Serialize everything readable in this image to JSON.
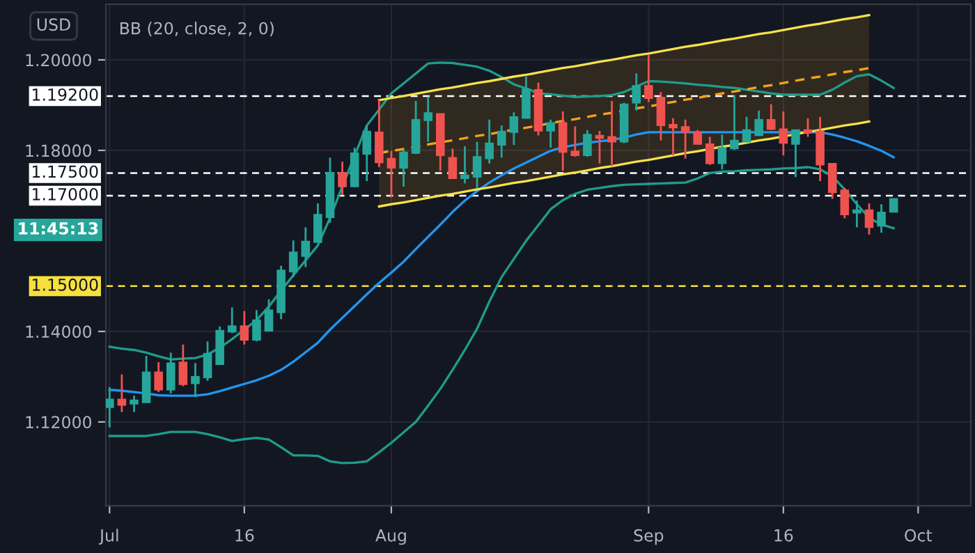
{
  "chart_data": {
    "type": "candlestick",
    "title": "BB (20, close, 2, 0)",
    "annotations": [
      "USD",
      "11:45:13"
    ],
    "categories": [
      "Jul",
      null,
      null,
      null,
      null,
      null,
      null,
      null,
      null,
      null,
      null,
      "16",
      null,
      null,
      null,
      null,
      null,
      null,
      null,
      null,
      null,
      null,
      null,
      "Aug",
      null,
      null,
      null,
      null,
      null,
      null,
      null,
      null,
      null,
      null,
      null,
      null,
      null,
      null,
      null,
      null,
      null,
      null,
      null,
      null,
      "Sep",
      null,
      null,
      null,
      null,
      null,
      null,
      null,
      null,
      null,
      null,
      "16",
      null,
      null,
      null,
      null,
      null,
      null,
      null,
      null,
      null,
      null,
      "Oct",
      null,
      null,
      null,
      null
    ],
    "ohlc": [
      [
        1.1232,
        1.1277,
        1.1188,
        1.125
      ],
      [
        1.125,
        1.1305,
        1.1222,
        1.1237
      ],
      [
        1.124,
        1.1258,
        1.1222,
        1.1248
      ],
      [
        1.1243,
        1.1346,
        1.1243,
        1.131
      ],
      [
        1.131,
        1.1332,
        1.1266,
        1.1271
      ],
      [
        1.1271,
        1.1353,
        1.1263,
        1.133
      ],
      [
        1.1332,
        1.1371,
        1.1279,
        1.1283
      ],
      [
        1.1285,
        1.133,
        1.1255,
        1.13
      ],
      [
        1.1298,
        1.1378,
        1.1291,
        1.1351
      ],
      [
        1.1327,
        1.1411,
        1.1327,
        1.1402
      ],
      [
        1.1399,
        1.1453,
        1.1396,
        1.1412
      ],
      [
        1.1412,
        1.1445,
        1.1371,
        1.1381
      ],
      [
        1.1381,
        1.1447,
        1.1378,
        1.1425
      ],
      [
        1.1401,
        1.1471,
        1.1401,
        1.1447
      ],
      [
        1.1442,
        1.1545,
        1.1427,
        1.1535
      ],
      [
        1.1532,
        1.1601,
        1.152,
        1.1575
      ],
      [
        1.1566,
        1.163,
        1.1542,
        1.1599
      ],
      [
        1.1597,
        1.1683,
        1.1597,
        1.1658
      ],
      [
        1.1652,
        1.1784,
        1.164,
        1.1751
      ],
      [
        1.1751,
        1.1775,
        1.1702,
        1.172
      ],
      [
        1.172,
        1.1806,
        1.172,
        1.1794
      ],
      [
        1.1792,
        1.1855,
        1.1732,
        1.1842
      ],
      [
        1.184,
        1.1912,
        1.1763,
        1.1773
      ],
      [
        1.1782,
        1.1799,
        1.1696,
        1.1761
      ],
      [
        1.1761,
        1.1802,
        1.172,
        1.1796
      ],
      [
        1.1794,
        1.1909,
        1.1792,
        1.1868
      ],
      [
        1.1866,
        1.1919,
        1.1819,
        1.1883
      ],
      [
        1.1881,
        1.1881,
        1.1755,
        1.1789
      ],
      [
        1.1784,
        1.1804,
        1.1738,
        1.1738
      ],
      [
        1.1738,
        1.1809,
        1.1727,
        1.1745
      ],
      [
        1.1741,
        1.1819,
        1.1717,
        1.1786
      ],
      [
        1.1782,
        1.1868,
        1.1771,
        1.1816
      ],
      [
        1.1812,
        1.1855,
        1.1784,
        1.1842
      ],
      [
        1.184,
        1.1884,
        1.1812,
        1.1874
      ],
      [
        1.1871,
        1.1963,
        1.1871,
        1.1935
      ],
      [
        1.1934,
        1.195,
        1.1833,
        1.1843
      ],
      [
        1.1843,
        1.1868,
        1.1806,
        1.1861
      ],
      [
        1.1861,
        1.1886,
        1.1755,
        1.1796
      ],
      [
        1.1798,
        1.1853,
        1.1786,
        1.1789
      ],
      [
        1.1789,
        1.1845,
        1.1786,
        1.1835
      ],
      [
        1.1833,
        1.1843,
        1.1771,
        1.1827
      ],
      [
        1.183,
        1.1909,
        1.1765,
        1.1819
      ],
      [
        1.1819,
        1.1905,
        1.1816,
        1.1902
      ],
      [
        1.1905,
        1.197,
        1.1888,
        1.1943
      ],
      [
        1.1943,
        1.2011,
        1.1907,
        1.1915
      ],
      [
        1.1917,
        1.1929,
        1.1822,
        1.1855
      ],
      [
        1.1857,
        1.1871,
        1.1789,
        1.185
      ],
      [
        1.1852,
        1.1868,
        1.1782,
        1.184
      ],
      [
        1.184,
        1.1845,
        1.1814,
        1.1814
      ],
      [
        1.1814,
        1.183,
        1.1768,
        1.1771
      ],
      [
        1.1771,
        1.1835,
        1.1758,
        1.1806
      ],
      [
        1.1804,
        1.1922,
        1.1801,
        1.1822
      ],
      [
        1.1819,
        1.1874,
        1.1819,
        1.1845
      ],
      [
        1.1833,
        1.1888,
        1.1833,
        1.1868
      ],
      [
        1.1868,
        1.1902,
        1.1845,
        1.1847
      ],
      [
        1.1847,
        1.1886,
        1.1789,
        1.1816
      ],
      [
        1.1814,
        1.1845,
        1.1741,
        1.1845
      ],
      [
        1.1845,
        1.1871,
        1.183,
        1.1839
      ],
      [
        1.1842,
        1.1874,
        1.1732,
        1.1768
      ],
      [
        1.1771,
        1.1771,
        1.1693,
        1.1707
      ],
      [
        1.1712,
        1.1717,
        1.165,
        1.1658
      ],
      [
        1.1662,
        1.1689,
        1.163,
        1.1668
      ],
      [
        1.1668,
        1.1683,
        1.1614,
        1.163
      ],
      [
        1.1633,
        1.1681,
        1.1618,
        1.1663
      ],
      [
        1.1664,
        1.1693,
        1.1664,
        1.1693
      ],
      null,
      null,
      null,
      null,
      null,
      null
    ],
    "colors": [
      "#26a69a",
      "#ef5350",
      "#26a69a",
      "#26a69a",
      "#ef5350",
      "#26a69a",
      "#ef5350",
      "#26a69a",
      "#26a69a",
      "#26a69a",
      "#26a69a",
      "#ef5350",
      "#26a69a",
      "#26a69a",
      "#26a69a",
      "#26a69a",
      "#26a69a",
      "#26a69a",
      "#26a69a",
      "#ef5350",
      "#26a69a",
      "#26a69a",
      "#ef5350",
      "#ef5350",
      "#26a69a",
      "#26a69a",
      "#26a69a",
      "#ef5350",
      "#ef5350",
      "#26a69a",
      "#26a69a",
      "#26a69a",
      "#26a69a",
      "#26a69a",
      "#26a69a",
      "#ef5350",
      "#26a69a",
      "#ef5350",
      "#ef5350",
      "#26a69a",
      "#ef5350",
      "#ef5350",
      "#26a69a",
      "#26a69a",
      "#ef5350",
      "#ef5350",
      "#ef5350",
      "#ef5350",
      "#ef5350",
      "#ef5350",
      "#26a69a",
      "#26a69a",
      "#26a69a",
      "#26a69a",
      "#ef5350",
      "#ef5350",
      "#26a69a",
      "#ef5350",
      "#ef5350",
      "#ef5350",
      "#ef5350",
      "#26a69a",
      "#ef5350",
      "#26a69a",
      "#26a69a",
      null,
      null,
      null,
      null,
      null,
      null
    ],
    "series": [
      {
        "type": "line",
        "color": "#1f9c8a",
        "line_style": "solid",
        "values": [
          1.1366,
          1.1362,
          1.1359,
          1.1353,
          1.1345,
          1.1338,
          1.134,
          1.1341,
          1.1349,
          1.1364,
          1.1383,
          1.1404,
          1.1425,
          1.1455,
          1.149,
          1.1524,
          1.1557,
          1.159,
          1.1651,
          1.172,
          1.1788,
          1.1855,
          1.189,
          1.1926,
          1.1948,
          1.197,
          1.1992,
          1.1994,
          1.1993,
          1.1989,
          1.1985,
          1.1976,
          1.1962,
          1.1946,
          1.1937,
          1.1926,
          1.1924,
          1.1921,
          1.1918,
          1.1919,
          1.192,
          1.1922,
          1.1929,
          1.1941,
          1.1953,
          1.1952,
          1.195,
          1.1948,
          1.1945,
          1.1943,
          1.194,
          1.1938,
          1.1934,
          1.193,
          1.1926,
          1.1923,
          1.1923,
          1.1923,
          1.1923,
          1.1934,
          1.195,
          1.1964,
          1.1968,
          1.1954,
          1.1938,
          null,
          null,
          null,
          null,
          null,
          null
        ]
      },
      {
        "type": "line",
        "color": "#2196f3",
        "line_style": "solid",
        "values": [
          1.1271,
          1.1269,
          1.1266,
          1.1263,
          1.1259,
          1.1258,
          1.1258,
          1.1258,
          1.1261,
          1.1268,
          1.1276,
          1.1284,
          1.1292,
          1.1302,
          1.1315,
          1.1333,
          1.1354,
          1.1375,
          1.1404,
          1.143,
          1.1456,
          1.1482,
          1.1507,
          1.153,
          1.1554,
          1.1582,
          1.1609,
          1.1636,
          1.1664,
          1.1689,
          1.171,
          1.1729,
          1.1745,
          1.176,
          1.1773,
          1.1786,
          1.1799,
          1.1807,
          1.1812,
          1.1817,
          1.182,
          1.1823,
          1.1828,
          1.1835,
          1.184,
          1.184,
          1.184,
          1.184,
          1.184,
          1.184,
          1.184,
          1.184,
          1.184,
          1.184,
          1.184,
          1.184,
          1.184,
          1.184,
          1.184,
          1.1835,
          1.1828,
          1.182,
          1.181,
          1.1799,
          1.1785,
          null,
          null,
          null,
          null,
          null,
          null
        ]
      },
      {
        "type": "line",
        "color": "#1f9c8a",
        "line_style": "solid",
        "values": [
          1.1169,
          1.1169,
          1.1169,
          1.1169,
          1.1173,
          1.1178,
          1.1178,
          1.1178,
          1.1173,
          1.1166,
          1.1158,
          1.1162,
          1.1165,
          1.1161,
          1.1144,
          1.1126,
          1.1126,
          1.1125,
          1.1113,
          1.1109,
          1.111,
          1.1113,
          1.1133,
          1.1154,
          1.1177,
          1.12,
          1.1236,
          1.1273,
          1.1315,
          1.1359,
          1.1406,
          1.1466,
          1.152,
          1.156,
          1.16,
          1.1635,
          1.167,
          1.169,
          1.1704,
          1.1713,
          1.1717,
          1.1721,
          1.1724,
          1.1725,
          1.1726,
          1.1727,
          1.1728,
          1.1729,
          1.1738,
          1.175,
          1.1753,
          1.1754,
          1.1756,
          1.1757,
          1.1758,
          1.176,
          1.1761,
          1.1763,
          1.1758,
          1.1743,
          1.1714,
          1.1681,
          1.1651,
          1.1636,
          1.1628,
          null,
          null,
          null,
          null,
          null,
          null
        ]
      },
      {
        "type": "line",
        "color": "#f5e14b",
        "line_style": "solid",
        "values": [
          null,
          null,
          null,
          null,
          null,
          null,
          null,
          null,
          null,
          null,
          null,
          null,
          null,
          null,
          null,
          null,
          null,
          null,
          null,
          null,
          null,
          null,
          1.1911,
          1.1916,
          1.192,
          1.1925,
          1.193,
          1.1935,
          1.1939,
          1.1944,
          1.1949,
          1.1953,
          1.1958,
          1.1963,
          1.1967,
          1.1972,
          1.1977,
          1.1982,
          1.1986,
          1.1991,
          1.1996,
          1.2,
          1.2005,
          1.201,
          1.2014,
          1.2019,
          1.2024,
          1.2029,
          1.2033,
          1.2038,
          1.2043,
          1.2047,
          1.2052,
          1.2057,
          1.2061,
          1.2066,
          1.2071,
          1.2076,
          1.208,
          1.2085,
          1.209,
          1.2094,
          1.2099,
          null,
          null,
          null,
          null,
          null,
          null,
          null,
          null
        ]
      },
      {
        "type": "line",
        "color": "#f7a21b",
        "line_style": "dashed",
        "values": [
          null,
          null,
          null,
          null,
          null,
          null,
          null,
          null,
          null,
          null,
          null,
          null,
          null,
          null,
          null,
          null,
          null,
          null,
          null,
          null,
          null,
          null,
          1.1794,
          1.1799,
          1.1803,
          1.1808,
          1.1813,
          1.1818,
          1.1822,
          1.1827,
          1.1832,
          1.1836,
          1.1841,
          1.1846,
          1.185,
          1.1855,
          1.186,
          1.1865,
          1.1869,
          1.1874,
          1.1879,
          1.1883,
          1.1888,
          1.1893,
          1.1897,
          1.1902,
          1.1907,
          1.1912,
          1.1916,
          1.1921,
          1.1926,
          1.193,
          1.1935,
          1.194,
          1.1944,
          1.1949,
          1.1954,
          1.1959,
          1.1963,
          1.1968,
          1.1973,
          1.1977,
          1.1982,
          null,
          null,
          null,
          null,
          null,
          null,
          null,
          null
        ],
        "lower": [
          null,
          null,
          null,
          null,
          null,
          null,
          null,
          null,
          null,
          null,
          null,
          null,
          null,
          null,
          null,
          null,
          null,
          null,
          null,
          null,
          null,
          null,
          1.1676,
          1.1681,
          1.1685,
          1.169,
          1.1695,
          1.17,
          1.1704,
          1.1709,
          1.1714,
          1.1718,
          1.1723,
          1.1728,
          1.1732,
          1.1737,
          1.1742,
          1.1747,
          1.1751,
          1.1756,
          1.1761,
          1.1765,
          1.177,
          1.1775,
          1.1779,
          1.1784,
          1.1789,
          1.1794,
          1.1798,
          1.1803,
          1.1808,
          1.1812,
          1.1817,
          1.1822,
          1.1826,
          1.1831,
          1.1836,
          1.1841,
          1.1845,
          1.185,
          1.1855,
          1.1859,
          1.1864,
          null,
          null,
          null,
          null,
          null,
          null,
          null,
          null
        ],
        "upper": [
          null,
          null,
          null,
          null,
          null,
          null,
          null,
          null,
          null,
          null,
          null,
          null,
          null,
          null,
          null,
          null,
          null,
          null,
          null,
          null,
          null,
          null,
          1.1911,
          1.1916,
          1.192,
          1.1925,
          1.193,
          1.1935,
          1.1939,
          1.1944,
          1.1949,
          1.1953,
          1.1958,
          1.1963,
          1.1967,
          1.1972,
          1.1977,
          1.1982,
          1.1986,
          1.1991,
          1.1996,
          1.2,
          1.2005,
          1.201,
          1.2014,
          1.2019,
          1.2024,
          1.2029,
          1.2033,
          1.2038,
          1.2043,
          1.2047,
          1.2052,
          1.2057,
          1.2061,
          1.2066,
          1.2071,
          1.2076,
          1.208,
          1.2085,
          1.209,
          1.2094,
          1.2099,
          null,
          null,
          null,
          null,
          null,
          null,
          null,
          null
        ]
      },
      {
        "type": "line",
        "color": "#f5e14b",
        "line_style": "solid",
        "values": [
          null,
          null,
          null,
          null,
          null,
          null,
          null,
          null,
          null,
          null,
          null,
          null,
          null,
          null,
          null,
          null,
          null,
          null,
          null,
          null,
          null,
          null,
          1.1676,
          1.1681,
          1.1685,
          1.169,
          1.1695,
          1.17,
          1.1704,
          1.1709,
          1.1714,
          1.1718,
          1.1723,
          1.1728,
          1.1732,
          1.1737,
          1.1742,
          1.1747,
          1.1751,
          1.1756,
          1.1761,
          1.1765,
          1.177,
          1.1775,
          1.1779,
          1.1784,
          1.1789,
          1.1794,
          1.1798,
          1.1803,
          1.1808,
          1.1812,
          1.1817,
          1.1822,
          1.1826,
          1.1831,
          1.1836,
          1.1841,
          1.1845,
          1.185,
          1.1855,
          1.1859,
          1.1864,
          null,
          null,
          null,
          null,
          null,
          null,
          null,
          null
        ]
      }
    ],
    "ylim": [
      1.1015,
      1.2123
    ],
    "yticks": [
      {
        "value": 1.12,
        "label": "1.12000"
      },
      {
        "value": 1.14,
        "label": "1.14000"
      },
      {
        "value": 1.18,
        "label": "1.18000"
      },
      {
        "value": 1.2,
        "label": "1.20000"
      }
    ],
    "ref_lines": [
      {
        "axis": "y",
        "value": 1.192,
        "label": "1.19200",
        "color": "#ffffff",
        "line_style": "dashed"
      },
      {
        "axis": "y",
        "value": 1.175,
        "label": "1.17500",
        "color": "#ffffff",
        "line_style": "dashed"
      },
      {
        "axis": "y",
        "value": 1.17,
        "label": "1.17000",
        "color": "#ffffff",
        "line_style": "dashed"
      },
      {
        "axis": "y",
        "value": 1.15,
        "label": "1.15000",
        "color": "#f7e03c",
        "line_style": "dashed"
      }
    ],
    "grid": true
  }
}
